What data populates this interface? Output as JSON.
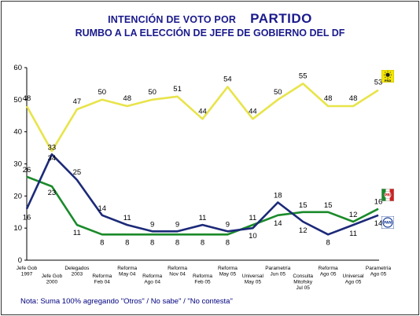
{
  "header": {
    "title_line1": "INTENCIÓN DE VOTO POR",
    "title_partido": "PARTIDO",
    "title_line2": "RUMBO A LA ELECCIÓN DE JEFE DE GOBIERNO DEL DF"
  },
  "note": "Nota: Suma 100% agregando \"Otros\" / No sabe\" / \"No contesta\"",
  "logos": {
    "prd": "PRD",
    "pri": "PRI",
    "pan": "PAN"
  },
  "colors": {
    "prd": "#e8e44a",
    "pri": "#1a8a2a",
    "pan": "#1c2a78",
    "axis": "#000000"
  },
  "chart_data": {
    "type": "line",
    "ylim": [
      0,
      60
    ],
    "yticks": [
      0,
      10,
      20,
      30,
      40,
      50,
      60
    ],
    "categories": [
      [
        "Jefe Gob",
        "1997"
      ],
      [
        "Jefe Gob",
        "2000"
      ],
      [
        "Delegados",
        "2003"
      ],
      [
        "Reforma",
        "Feb 04"
      ],
      [
        "Reforma",
        "May 04"
      ],
      [
        "Reforma",
        "Ago 04"
      ],
      [
        "Reforma",
        "Nov 04"
      ],
      [
        "Reforma",
        "Feb 05"
      ],
      [
        "Reforma",
        "May 05"
      ],
      [
        "Universal",
        "May 05"
      ],
      [
        "Parametría",
        "Jun 05"
      ],
      [
        "Consulta",
        "Mitofsky",
        "Jul 05"
      ],
      [
        "Reforma",
        "Ago 05"
      ],
      [
        "Universal",
        "Ago 05"
      ],
      [
        "Parametría",
        "Ago 05"
      ]
    ],
    "series": [
      {
        "key": "prd",
        "values": [
          48,
          34,
          47,
          50,
          48,
          50,
          51,
          44,
          54,
          44,
          50,
          55,
          48,
          48,
          53
        ]
      },
      {
        "key": "pri",
        "values": [
          26,
          23,
          11,
          8,
          8,
          8,
          8,
          8,
          8,
          11,
          14,
          15,
          15,
          12,
          16
        ]
      },
      {
        "key": "pan",
        "values": [
          16,
          33,
          25,
          14,
          11,
          9,
          9,
          11,
          9,
          10,
          18,
          12,
          8,
          11,
          14
        ]
      }
    ],
    "grid": false
  }
}
